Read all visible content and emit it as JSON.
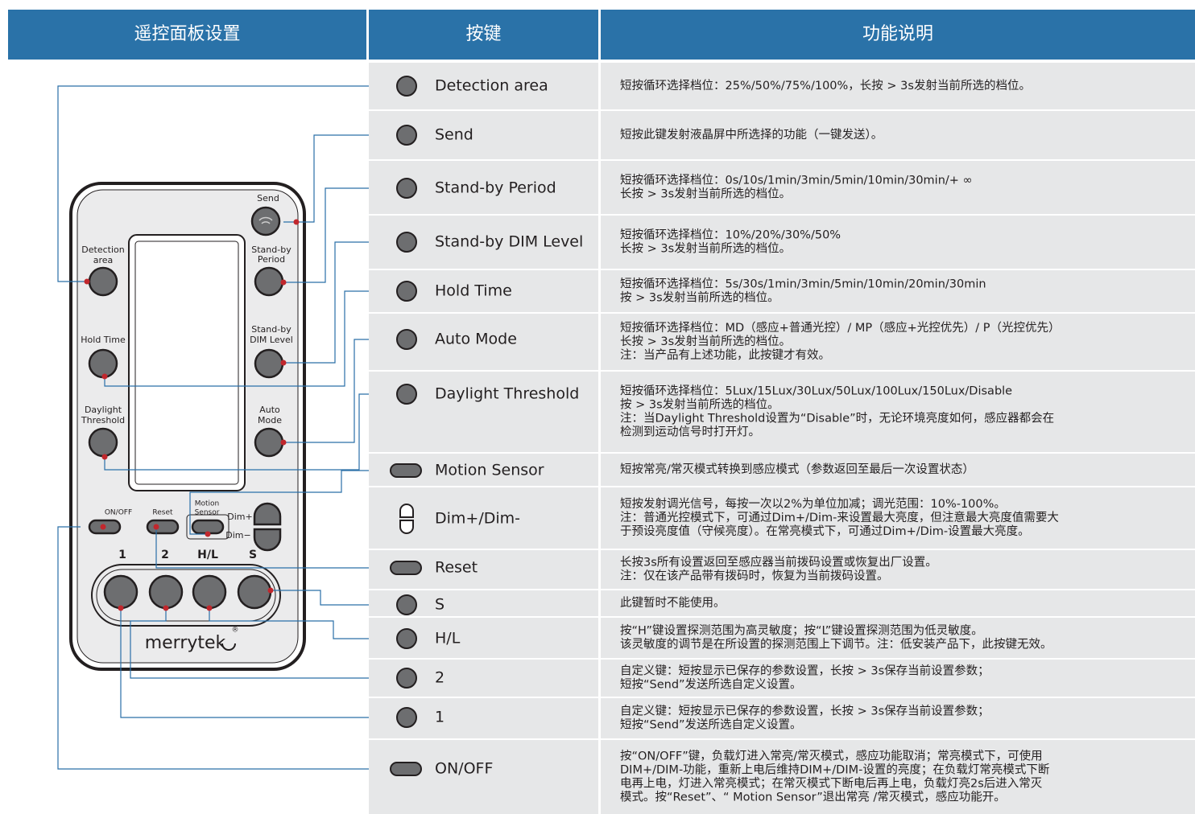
{
  "header": {
    "columns": [
      "遥控面板设置",
      "按键",
      "功能说明"
    ]
  },
  "remote": {
    "labels": [
      "Send",
      "Detection",
      "area",
      "Stand-by",
      "Period",
      "Hold Time",
      "Stand-by",
      "DIM Level",
      "Daylight",
      "Threshold",
      "Auto",
      "Mode",
      "ON/OFF",
      "Reset",
      "Motion",
      "Sensor",
      "Dim+",
      "Dim−",
      "1",
      "2",
      "H/L",
      "S",
      "merrytek",
      "®"
    ]
  },
  "rows": [
    {
      "key": "Detection area",
      "icon": "circle",
      "description": [
        "短按循环选择档位：25%/50%/75%/100%，长按 > 3s发射当前所选的档位。"
      ]
    },
    {
      "key": "Send",
      "icon": "circle",
      "description": [
        "短按此键发射液晶屏中所选择的功能（一键发送）。"
      ]
    },
    {
      "key": "Stand-by Period",
      "icon": "circle",
      "description": [
        "短按循环选择档位：0s/10s/1min/3min/5min/10min/30min/+ ∞",
        "长按 > 3s发射当前所选的档位。"
      ]
    },
    {
      "key": "Stand-by DIM Level",
      "icon": "circle",
      "description": [
        "短按循环选择档位：10%/20%/30%/50%",
        "长按 > 3s发射当前所选的档位。"
      ]
    },
    {
      "key": "Hold Time",
      "icon": "circle",
      "description": [
        "短按循环选择档位：5s/30s/1min/3min/5min/10min/20min/30min",
        "按 > 3s发射当前所选的档位。"
      ]
    },
    {
      "key": "Auto Mode",
      "icon": "circle",
      "description": [
        "短按循环选择档位：MD（感应+普通光控）/ MP（感应+光控优先）/ P（光控优先）",
        "长按 > 3s发射当前所选的档位。",
        "注：当产品有上述功能，此按键才有效。"
      ]
    },
    {
      "key": "Daylight Threshold",
      "icon": "circle",
      "description": [
        "短按循环选择档位：5Lux/15Lux/30Lux/50Lux/100Lux/150Lux/Disable",
        "按 > 3s发射当前所选的档位。",
        "注：当Daylight Threshold设置为“Disable”时，无论环境亮度如何，感应器都会在",
        "检测到运动信号时打开灯。"
      ]
    },
    {
      "key": "Motion Sensor",
      "icon": "pill",
      "description": [
        "短按常亮/常灭模式转换到感应模式（参数返回至最后一次设置状态）"
      ]
    },
    {
      "key": "Dim+/Dim-",
      "icon": "dim",
      "description": [
        "短按发射调光信号，每按一次以2%为单位加减；调光范围：10%-100%。",
        "注：普通光控模式下，可通过Dim+/Dim-来设置最大亮度，但注意最大亮度值需要大",
        "于预设亮度值（守候亮度）。在常亮模式下，可通过Dim+/Dim-设置最大亮度。"
      ]
    },
    {
      "key": "Reset",
      "icon": "pill",
      "description": [
        "长按3s所有设置返回至感应器当前拨码设置或恢复出厂设置。",
        "注：仅在该产品带有拨码时，恢复为当前拨码设置。"
      ]
    },
    {
      "key": "S",
      "icon": "circle",
      "description": [
        "此键暂时不能使用。"
      ]
    },
    {
      "key": "H/L",
      "icon": "circle",
      "description": [
        "按“H”键设置探测范围为高灵敏度；按“L”键设置探测范围为低灵敏度。",
        "该灵敏度的调节是在所设置的探测范围上下调节。注：低安装产品下，此按键无效。"
      ]
    },
    {
      "key": "2",
      "icon": "circle",
      "description": [
        "自定义键：短按显示已保存的参数设置，长按 > 3s保存当前设置参数；",
        "短按“Send”发送所选自定义设置。"
      ]
    },
    {
      "key": "1",
      "icon": "circle",
      "description": [
        "自定义键：短按显示已保存的参数设置，长按 > 3s保存当前设置参数；",
        "短按“Send”发送所选自定义设置。"
      ]
    },
    {
      "key": "ON/OFF",
      "icon": "pill",
      "description": [
        "按“ON/OFF”键，负载灯进入常亮/常灭模式，感应功能取消；常亮模式下，可使用",
        "DIM+/DIM-功能，重新上电后维持DIM+/DIM-设置的亮度；在负载灯常亮模式下断",
        "电再上电，灯进入常亮模式；在常灭模式下断电后再上电，负载灯亮2s后进入常灭",
        "模式。按“Reset”、“ Motion Sensor”退出常亮 /常灭模式，感应功能开。"
      ]
    }
  ]
}
